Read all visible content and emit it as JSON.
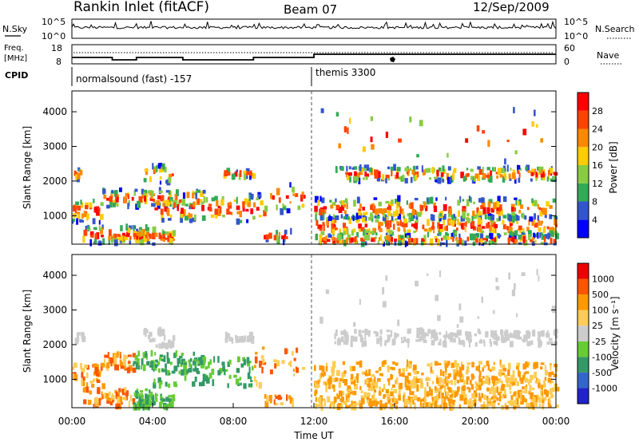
{
  "header": {
    "station": "Rankin Inlet (fitACF)",
    "beam": "Beam 07",
    "date": "12/Sep/2009"
  },
  "noise_panel": {
    "left_label": "N.Sky",
    "right_label": "N.Search",
    "ytick_top": "10^5",
    "ytick_bottom": "10^0"
  },
  "freq_panel": {
    "left_label_1": "Freq.",
    "left_label_2": "[MHz]",
    "right_label": "Nave",
    "left_ticks": [
      "18",
      "8"
    ],
    "right_ticks": [
      "60",
      "0"
    ]
  },
  "cpid_panel": {
    "label": "CPID",
    "segments": [
      {
        "start_hour": 0,
        "end_hour": 12,
        "text": "normalsound (fast) -157"
      },
      {
        "start_hour": 12,
        "end_hour": 24,
        "text": "themis 3300"
      }
    ]
  },
  "colors": {
    "power": [
      "#0000ff",
      "#3355cc",
      "#33aa55",
      "#88cc44",
      "#ffcc00",
      "#ff8800",
      "#ff4400",
      "#ff0000"
    ],
    "velocity": [
      "#ee0000",
      "#ff5500",
      "#ff9900",
      "#ffcc55",
      "#cccccc",
      "#66cc33",
      "#339966",
      "#3366cc",
      "#2222cc"
    ]
  },
  "chart_data": [
    {
      "type": "heatmap",
      "name_ref": "power",
      "ylabel": "Slant Range [km]",
      "xlabel": "",
      "xlim_hours": [
        0,
        24
      ],
      "ylim_km": [
        180,
        4600
      ],
      "yticks": [
        1000,
        2000,
        3000,
        4000
      ],
      "colorbar": {
        "label": "Power [dB]",
        "ticks": [
          "4",
          "8",
          "12",
          "16",
          "20",
          "24",
          "28"
        ]
      }
    },
    {
      "type": "heatmap",
      "name_ref": "velocity",
      "ylabel": "Slant Range [km]",
      "xlabel": "Time UT",
      "xlim_hours": [
        0,
        24
      ],
      "ylim_km": [
        180,
        4600
      ],
      "yticks": [
        1000,
        2000,
        3000,
        4000
      ],
      "xticks": [
        "00:00",
        "04:00",
        "08:00",
        "12:00",
        "16:00",
        "20:00",
        "00:00"
      ],
      "colorbar": {
        "label": "Velocity [m s⁻¹]",
        "ticks": [
          "1000",
          "500",
          "100",
          "25",
          "-25",
          "-100",
          "-500",
          "-1000"
        ]
      }
    }
  ]
}
